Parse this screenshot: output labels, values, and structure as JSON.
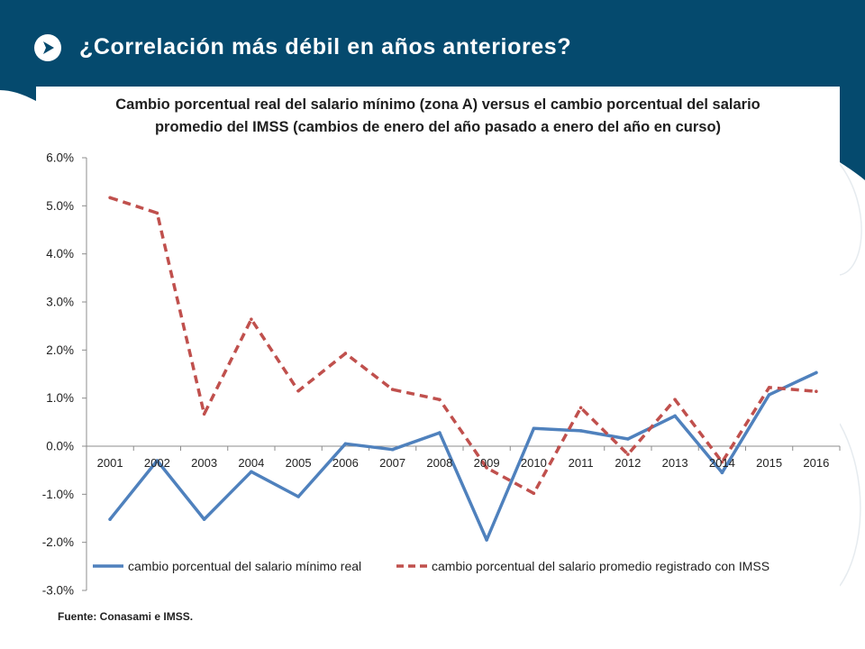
{
  "slide": {
    "title": "¿Correlación más débil en años anteriores?",
    "header_color": "#054a6e",
    "icon": "arrow-right-icon"
  },
  "source_note": "Fuente: Conasami e IMSS.",
  "chart_data": {
    "type": "line",
    "title_lines": [
      "Cambio porcentual real del salario mínimo (zona A) versus el cambio porcentual del salario",
      "promedio del IMSS (cambios de enero del año pasado a enero del año en curso)"
    ],
    "xlabel": "",
    "ylabel": "",
    "categories": [
      "2001",
      "2002",
      "2003",
      "2004",
      "2005",
      "2006",
      "2007",
      "2008",
      "2009",
      "2010",
      "2011",
      "2012",
      "2013",
      "2014",
      "2015",
      "2016"
    ],
    "ylim": [
      -3.0,
      6.0
    ],
    "yticks": [
      "6.0%",
      "5.0%",
      "4.0%",
      "3.0%",
      "2.0%",
      "1.0%",
      "0.0%",
      "-1.0%",
      "-2.0%",
      "-3.0%"
    ],
    "ytick_values": [
      6,
      5,
      4,
      3,
      2,
      1,
      0,
      -1,
      -2,
      -3
    ],
    "grid": false,
    "legend_position": "bottom",
    "series": [
      {
        "name": "cambio porcentual del salario mínimo real",
        "color": "#4f81bd",
        "dash": "solid",
        "values": [
          -1.52,
          -0.3,
          -1.52,
          -0.53,
          -1.05,
          0.05,
          -0.07,
          0.28,
          -1.95,
          0.37,
          0.32,
          0.15,
          0.63,
          -0.55,
          1.07,
          1.53
        ]
      },
      {
        "name": "cambio porcentual del salario promedio registrado con IMSS",
        "color": "#c0504d",
        "dash": "dashed",
        "values": [
          5.17,
          4.85,
          0.67,
          2.64,
          1.15,
          1.93,
          1.18,
          0.97,
          -0.45,
          -0.98,
          0.8,
          -0.17,
          0.97,
          -0.33,
          1.22,
          1.14
        ]
      }
    ]
  }
}
